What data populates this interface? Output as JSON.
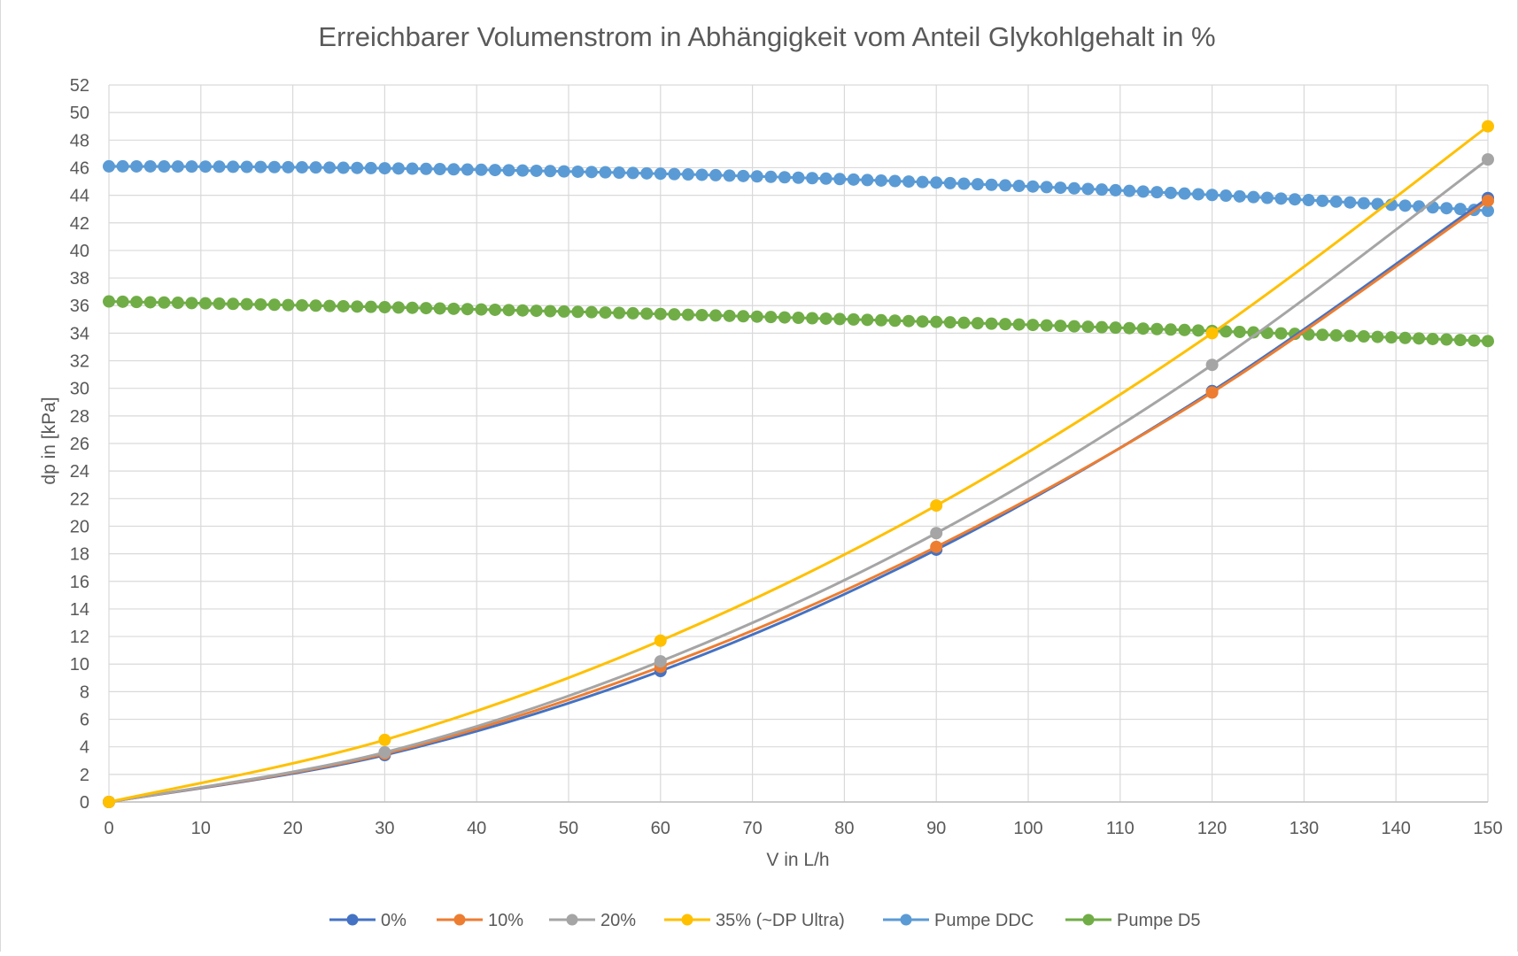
{
  "chart_data": {
    "type": "line",
    "title": "Erreichbarer Volumenstrom in Abhängigkeit vom Anteil Glykohlgehalt in %",
    "xlabel": "V in L/h",
    "ylabel": "dp in [kPa]",
    "xlim": [
      0,
      150
    ],
    "ylim": [
      0,
      52
    ],
    "x_ticks": [
      "0",
      "10",
      "20",
      "30",
      "40",
      "50",
      "60",
      "70",
      "80",
      "90",
      "100",
      "110",
      "120",
      "130",
      "140",
      "150"
    ],
    "y_ticks": [
      "0",
      "2",
      "4",
      "6",
      "8",
      "10",
      "12",
      "14",
      "16",
      "18",
      "20",
      "22",
      "24",
      "26",
      "28",
      "30",
      "32",
      "34",
      "36",
      "38",
      "40",
      "42",
      "44",
      "46",
      "48",
      "50",
      "52"
    ],
    "grid": true,
    "legend_position": "bottom",
    "series": [
      {
        "name": "0%",
        "color": "#4472c4",
        "marker": "circle",
        "points": [
          [
            0,
            0
          ],
          [
            30,
            3.4
          ],
          [
            60,
            9.5
          ],
          [
            90,
            18.3
          ],
          [
            120,
            29.8
          ],
          [
            150,
            43.8
          ]
        ]
      },
      {
        "name": "10%",
        "color": "#ed7d31",
        "marker": "circle",
        "points": [
          [
            0,
            0
          ],
          [
            30,
            3.5
          ],
          [
            60,
            9.8
          ],
          [
            90,
            18.5
          ],
          [
            120,
            29.7
          ],
          [
            150,
            43.6
          ]
        ]
      },
      {
        "name": "20%",
        "color": "#a5a5a5",
        "marker": "circle",
        "points": [
          [
            0,
            0
          ],
          [
            30,
            3.6
          ],
          [
            60,
            10.2
          ],
          [
            90,
            19.5
          ],
          [
            120,
            31.7
          ],
          [
            150,
            46.6
          ]
        ]
      },
      {
        "name": "35% (~DP Ultra)",
        "color": "#ffc000",
        "marker": "circle",
        "points": [
          [
            0,
            0
          ],
          [
            30,
            4.5
          ],
          [
            60,
            11.7
          ],
          [
            90,
            21.5
          ],
          [
            120,
            34.0
          ],
          [
            150,
            49.0
          ]
        ]
      },
      {
        "name": "Pumpe DDC",
        "color": "#5b9bd5",
        "marker": "circle",
        "dense": true,
        "curve": {
          "x_start": 0,
          "x_end": 150,
          "step": 1.5,
          "y_at_0": 46.1,
          "a1": -0.0005,
          "a2": -0.00014
        }
      },
      {
        "name": "Pumpe D5",
        "color": "#70ad47",
        "marker": "circle",
        "dense": true,
        "curve": {
          "x_start": 0,
          "x_end": 150,
          "step": 1.5,
          "y_at_0": 36.3,
          "a1": -0.0125,
          "a2": -4.44e-05
        }
      }
    ]
  }
}
